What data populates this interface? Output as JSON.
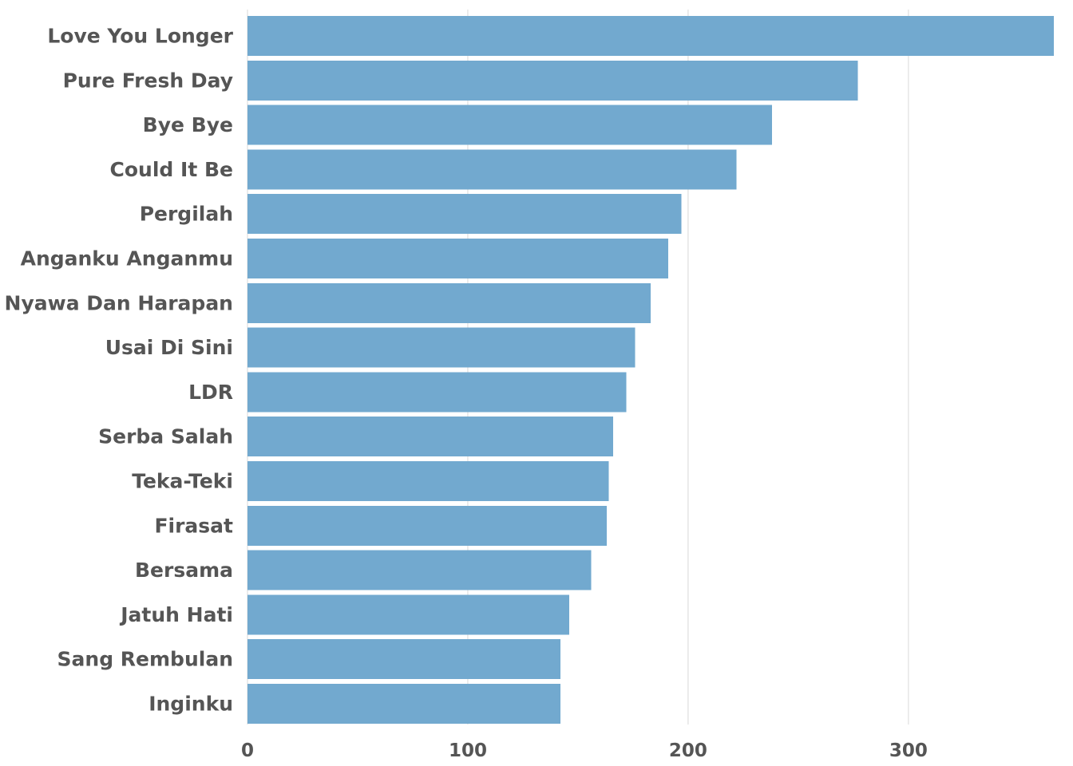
{
  "chart_data": {
    "type": "bar",
    "orientation": "horizontal",
    "categories": [
      "Love You Longer",
      "Pure Fresh Day",
      "Bye Bye",
      "Could It Be",
      "Pergilah",
      "Anganku Anganmu",
      "Nyawa Dan Harapan",
      "Usai Di Sini",
      "LDR",
      "Serba Salah",
      "Teka-Teki",
      "Firasat",
      "Bersama",
      "Jatuh Hati",
      "Sang Rembulan",
      "Inginku"
    ],
    "values": [
      366,
      277,
      238,
      222,
      197,
      191,
      183,
      176,
      172,
      166,
      164,
      163,
      156,
      146,
      142,
      142
    ],
    "xlim": [
      0,
      366
    ],
    "xticks": [
      0,
      100,
      200,
      300
    ],
    "xtick_labels": [
      "0",
      "100",
      "200",
      "300"
    ],
    "grid": "vertical",
    "bar_color": "#72a9cf",
    "label_color": "#555555",
    "grid_color": "#d9d9d9",
    "legend": "none"
  }
}
